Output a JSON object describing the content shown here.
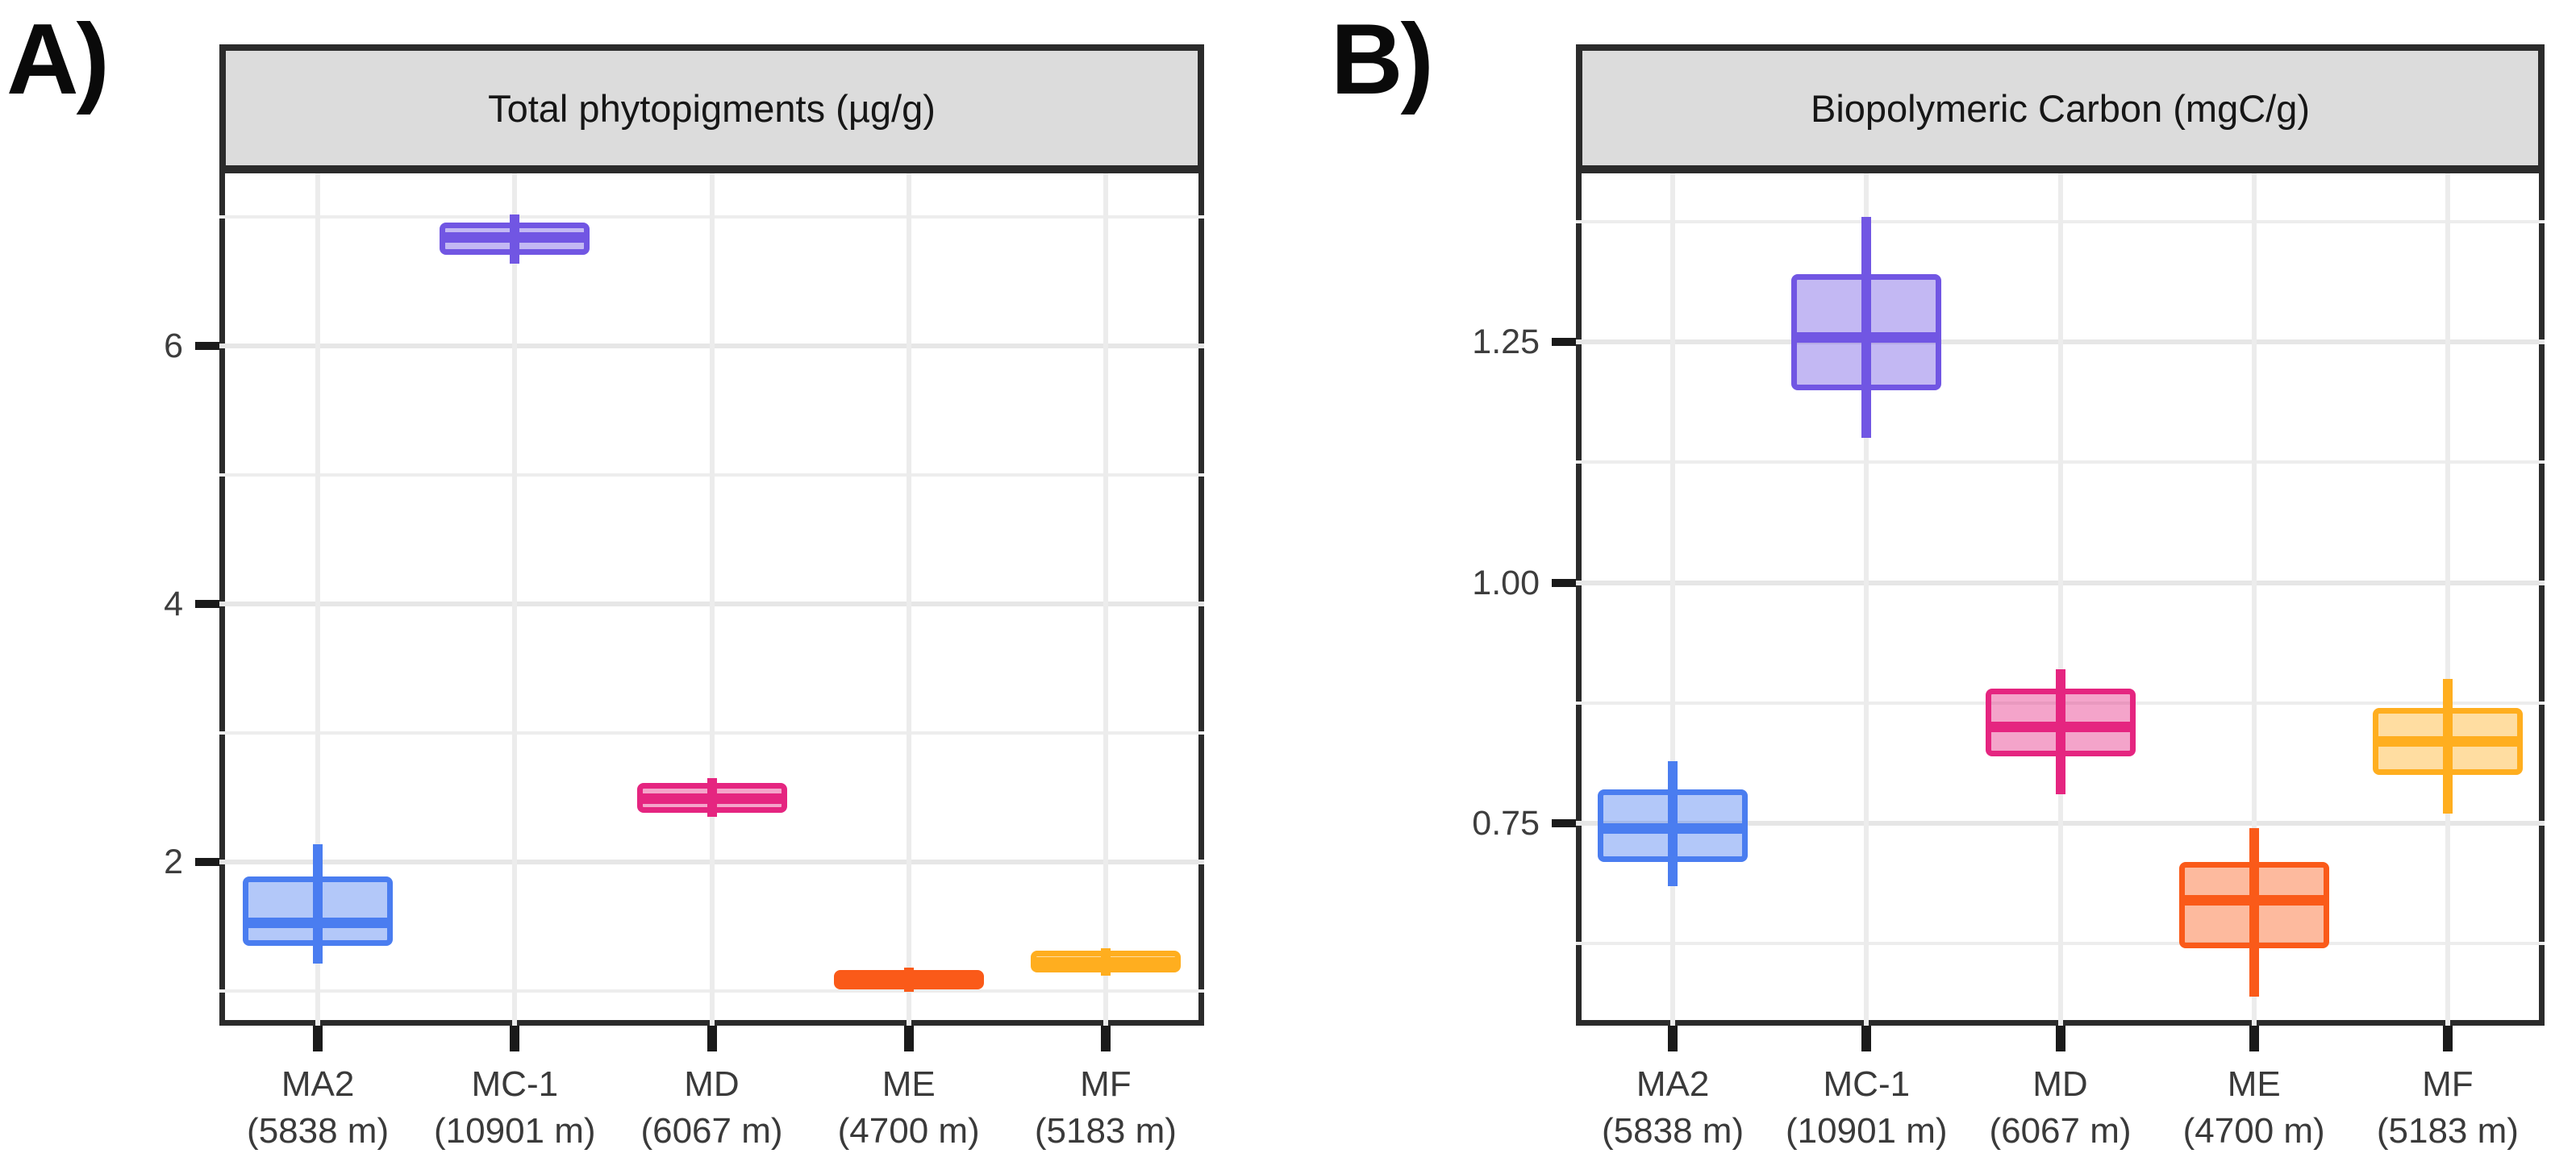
{
  "style": {
    "background": "#ffffff",
    "strip_bg": "#dcdcdc",
    "frame_color": "#2b2b2b",
    "grid_major_color": "#e6e6e6",
    "grid_minor_color": "#ededed",
    "tick_mark_color": "#1a1a1a",
    "axis_label_color": "#3d3d3d",
    "box_fill_alpha": 0.42
  },
  "chart_data": [
    {
      "type": "boxplot",
      "panel_label": "A)",
      "title": "Total phytopigments (µg/g)",
      "xlabel": "",
      "ylabel": "",
      "ylim": [
        0.73,
        7.34
      ],
      "grid": true,
      "legend": false,
      "y_major_ticks": [
        2,
        4,
        6
      ],
      "y_major_tick_labels": [
        "2",
        "4",
        "6"
      ],
      "y_minor_gridlines": [
        1,
        3,
        5,
        7
      ],
      "categories": [
        {
          "station": "MA2",
          "depth": "(5838 m)"
        },
        {
          "station": "MC-1",
          "depth": "(10901 m)"
        },
        {
          "station": "MD",
          "depth": "(6067 m)"
        },
        {
          "station": "ME",
          "depth": "(4700 m)"
        },
        {
          "station": "MF",
          "depth": "(5183 m)"
        }
      ],
      "series": [
        {
          "name": "MA2",
          "color": "#4a7df0",
          "whisker_low": 1.21,
          "q1": 1.35,
          "median": 1.53,
          "q3": 1.89,
          "whisker_high": 2.14
        },
        {
          "name": "MC-1",
          "color": "#7156e3",
          "whisker_low": 6.64,
          "q1": 6.71,
          "median": 6.84,
          "q3": 6.96,
          "whisker_high": 7.02
        },
        {
          "name": "MD",
          "color": "#e52580",
          "whisker_low": 2.35,
          "q1": 2.38,
          "median": 2.49,
          "q3": 2.61,
          "whisker_high": 2.65
        },
        {
          "name": "ME",
          "color": "#fa5a19",
          "whisker_low": 0.995,
          "q1": 1.01,
          "median": 1.08,
          "q3": 1.16,
          "whisker_high": 1.18
        },
        {
          "name": "MF",
          "color": "#ffae1f",
          "whisker_low": 1.12,
          "q1": 1.14,
          "median": 1.22,
          "q3": 1.31,
          "whisker_high": 1.33
        }
      ]
    },
    {
      "type": "boxplot",
      "panel_label": "B)",
      "title": "Biopolymeric Carbon (mgC/g)",
      "xlabel": "",
      "ylabel": "",
      "ylim": [
        0.54,
        1.425
      ],
      "grid": true,
      "legend": false,
      "y_major_ticks": [
        0.75,
        1.0,
        1.25
      ],
      "y_major_tick_labels": [
        "0.75",
        "1.00",
        "1.25"
      ],
      "y_minor_gridlines": [
        0.625,
        0.875,
        1.125,
        1.375
      ],
      "categories": [
        {
          "station": "MA2",
          "depth": "(5838 m)"
        },
        {
          "station": "MC-1",
          "depth": "(10901 m)"
        },
        {
          "station": "MD",
          "depth": "(6067 m)"
        },
        {
          "station": "ME",
          "depth": "(4700 m)"
        },
        {
          "station": "MF",
          "depth": "(5183 m)"
        }
      ],
      "series": [
        {
          "name": "MA2",
          "color": "#4a7df0",
          "whisker_low": 0.685,
          "q1": 0.71,
          "median": 0.745,
          "q3": 0.785,
          "whisker_high": 0.815
        },
        {
          "name": "MC-1",
          "color": "#7156e3",
          "whisker_low": 1.15,
          "q1": 1.2,
          "median": 1.255,
          "q3": 1.32,
          "whisker_high": 1.38
        },
        {
          "name": "MD",
          "color": "#e52580",
          "whisker_low": 0.78,
          "q1": 0.82,
          "median": 0.85,
          "q3": 0.89,
          "whisker_high": 0.91
        },
        {
          "name": "ME",
          "color": "#fa5a19",
          "whisker_low": 0.57,
          "q1": 0.62,
          "median": 0.67,
          "q3": 0.71,
          "whisker_high": 0.745
        },
        {
          "name": "MF",
          "color": "#ffae1f",
          "whisker_low": 0.76,
          "q1": 0.8,
          "median": 0.835,
          "q3": 0.87,
          "whisker_high": 0.9
        }
      ]
    }
  ]
}
